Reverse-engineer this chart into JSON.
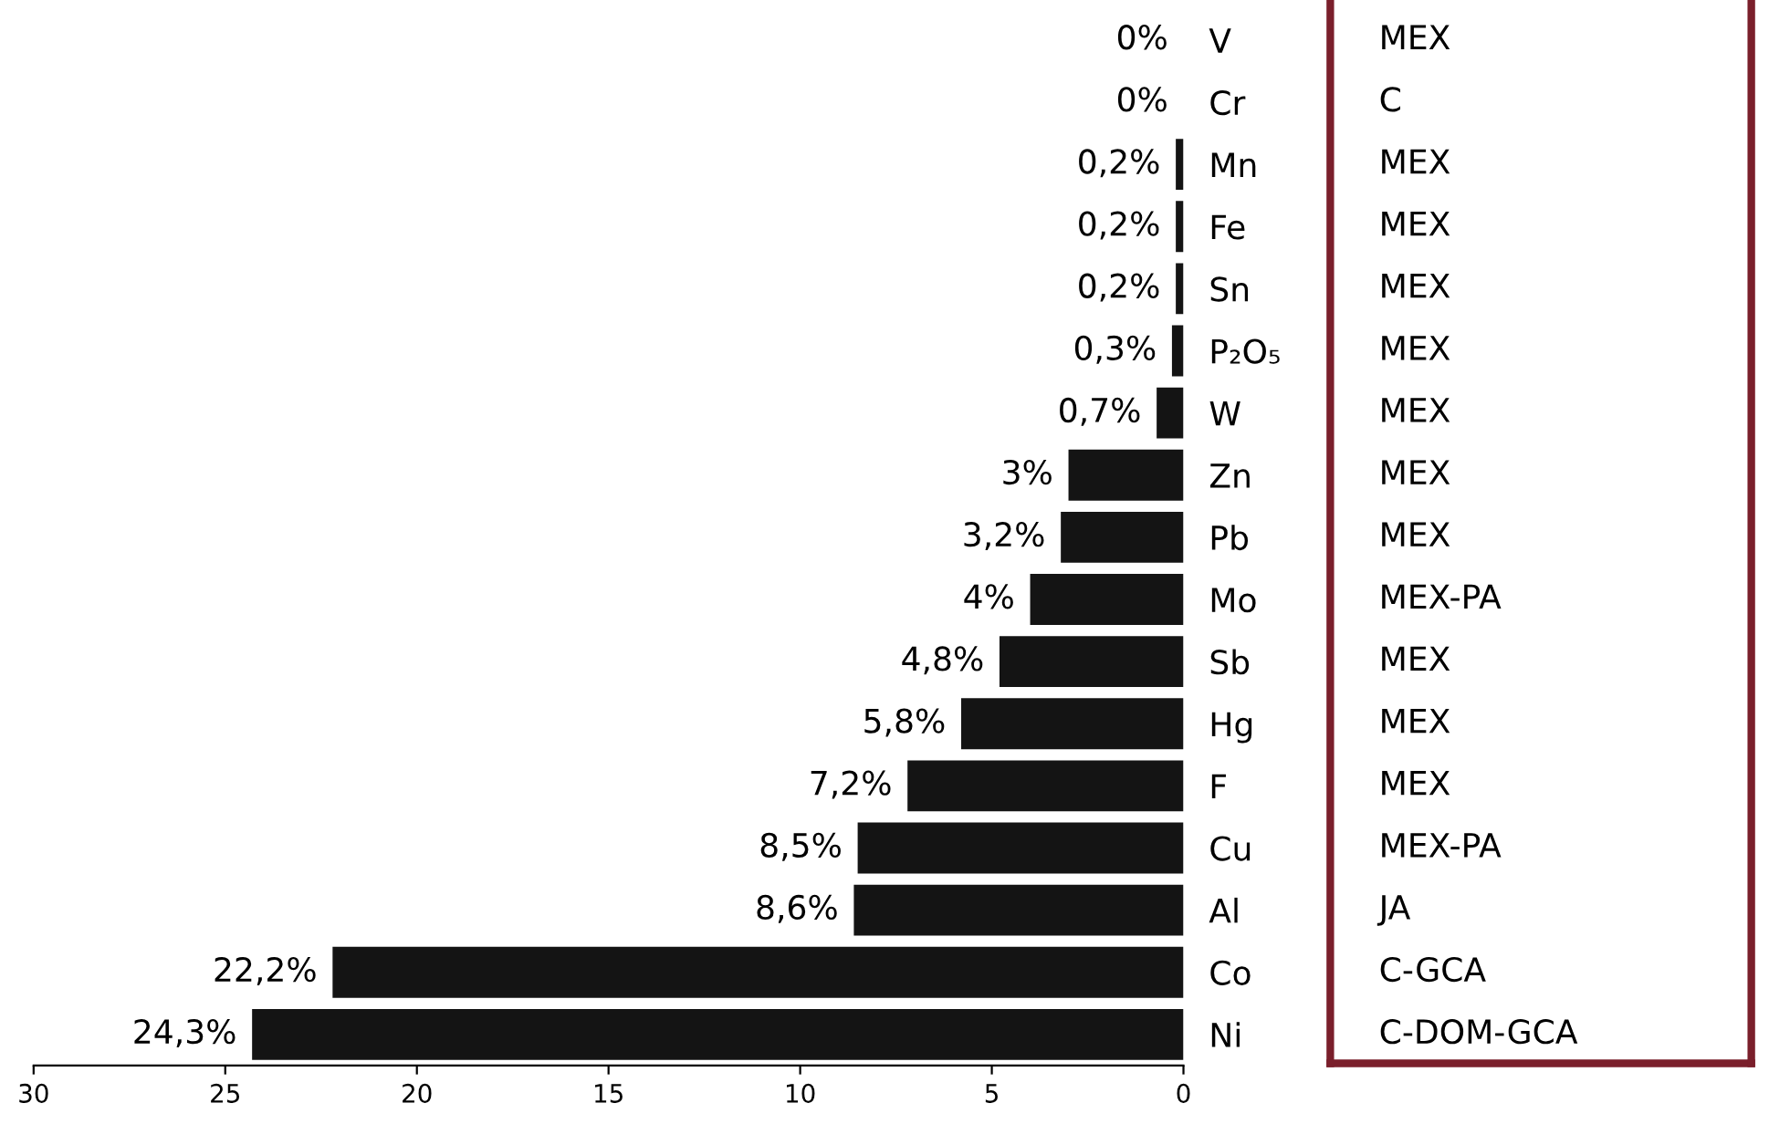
{
  "chart_data": {
    "type": "bar",
    "orientation": "horizontal",
    "categories": [
      "V",
      "Cr",
      "Mn",
      "Fe",
      "Sn",
      "P₂O₅",
      "W",
      "Zn",
      "Pb",
      "Mo",
      "Sb",
      "Hg",
      "F",
      "Cu",
      "Al",
      "Co",
      "Ni"
    ],
    "values": [
      0,
      0,
      0.2,
      0.2,
      0.2,
      0.3,
      0.7,
      3,
      3.2,
      4,
      4.8,
      5.8,
      7.2,
      8.5,
      8.6,
      22.2,
      24.3
    ],
    "value_labels": [
      "0%",
      "0%",
      "0,2%",
      "0,2%",
      "0,2%",
      "0,3%",
      "0,7%",
      "3%",
      "3,2%",
      "4%",
      "4,8%",
      "5,8%",
      "7,2%",
      "8,5%",
      "8,6%",
      "22,2%",
      "24,3%"
    ],
    "color": "#141414",
    "xlim": [
      30,
      0
    ],
    "xticks": [
      30,
      25,
      20,
      15,
      10,
      5,
      0
    ],
    "grid": false,
    "legend": false,
    "annotations": [
      "MEX",
      "C",
      "MEX",
      "MEX",
      "MEX",
      "MEX",
      "MEX",
      "MEX",
      "MEX",
      "MEX-PA",
      "MEX",
      "MEX",
      "MEX",
      "MEX-PA",
      "JA",
      "C-GCA",
      "C-DOM-GCA"
    ]
  }
}
